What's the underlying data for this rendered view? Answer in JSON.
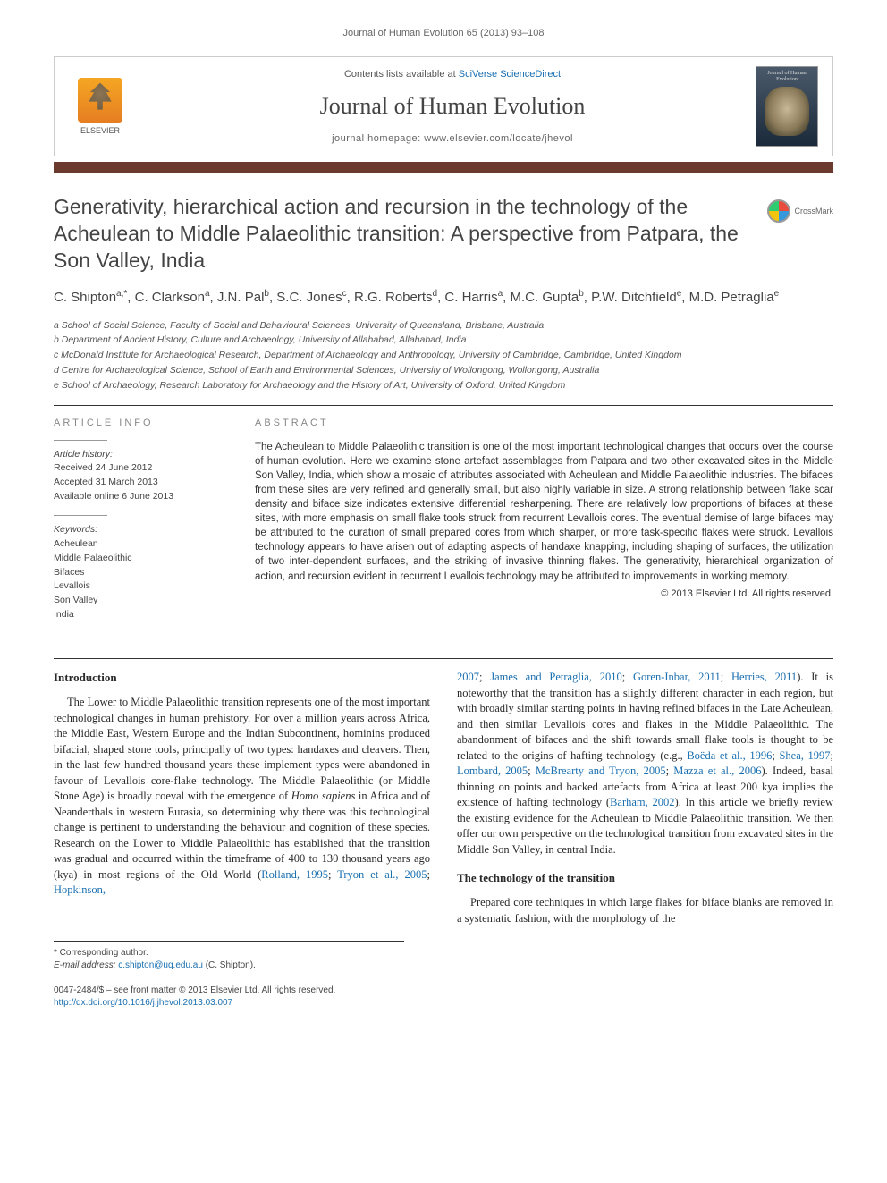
{
  "running_head": "Journal of Human Evolution 65 (2013) 93–108",
  "banner": {
    "publisher": "ELSEVIER",
    "contents_prefix": "Contents lists available at ",
    "contents_link": "SciVerse ScienceDirect",
    "journal_name": "Journal of Human Evolution",
    "homepage_label": "journal homepage: ",
    "homepage_url": "www.elsevier.com/locate/jhevol",
    "cover_title": "Journal of Human Evolution"
  },
  "crossmark_label": "CrossMark",
  "title": "Generativity, hierarchical action and recursion in the technology of the Acheulean to Middle Palaeolithic transition: A perspective from Patpara, the Son Valley, India",
  "authors_html": "C. Shipton<sup>a,*</sup>, C. Clarkson<sup>a</sup>, J.N. Pal<sup>b</sup>, S.C. Jones<sup>c</sup>, R.G. Roberts<sup>d</sup>, C. Harris<sup>a</sup>, M.C. Gupta<sup>b</sup>, P.W. Ditchfield<sup>e</sup>, M.D. Petraglia<sup>e</sup>",
  "affiliations": [
    "a School of Social Science, Faculty of Social and Behavioural Sciences, University of Queensland, Brisbane, Australia",
    "b Department of Ancient History, Culture and Archaeology, University of Allahabad, Allahabad, India",
    "c McDonald Institute for Archaeological Research, Department of Archaeology and Anthropology, University of Cambridge, Cambridge, United Kingdom",
    "d Centre for Archaeological Science, School of Earth and Environmental Sciences, University of Wollongong, Wollongong, Australia",
    "e School of Archaeology, Research Laboratory for Archaeology and the History of Art, University of Oxford, United Kingdom"
  ],
  "article_info": {
    "heading": "ARTICLE INFO",
    "history_head": "Article history:",
    "history": [
      "Received 24 June 2012",
      "Accepted 31 March 2013",
      "Available online 6 June 2013"
    ],
    "keywords_head": "Keywords:",
    "keywords": [
      "Acheulean",
      "Middle Palaeolithic",
      "Bifaces",
      "Levallois",
      "Son Valley",
      "India"
    ]
  },
  "abstract": {
    "heading": "ABSTRACT",
    "text": "The Acheulean to Middle Palaeolithic transition is one of the most important technological changes that occurs over the course of human evolution. Here we examine stone artefact assemblages from Patpara and two other excavated sites in the Middle Son Valley, India, which show a mosaic of attributes associated with Acheulean and Middle Palaeolithic industries. The bifaces from these sites are very refined and generally small, but also highly variable in size. A strong relationship between flake scar density and biface size indicates extensive differential resharpening. There are relatively low proportions of bifaces at these sites, with more emphasis on small flake tools struck from recurrent Levallois cores. The eventual demise of large bifaces may be attributed to the curation of small prepared cores from which sharper, or more task-specific flakes were struck. Levallois technology appears to have arisen out of adapting aspects of handaxe knapping, including shaping of surfaces, the utilization of two inter-dependent surfaces, and the striking of invasive thinning flakes. The generativity, hierarchical organization of action, and recursion evident in recurrent Levallois technology may be attributed to improvements in working memory.",
    "copyright": "© 2013 Elsevier Ltd. All rights reserved."
  },
  "sections": {
    "intro_head": "Introduction",
    "intro_p1_html": "The Lower to Middle Palaeolithic transition represents one of the most important technological changes in human prehistory. For over a million years across Africa, the Middle East, Western Europe and the Indian Subcontinent, hominins produced bifacial, shaped stone tools, principally of two types: handaxes and cleavers. Then, in the last few hundred thousand years these implement types were abandoned in favour of Levallois core-flake technology. The Middle Palaeolithic (or Middle Stone Age) is broadly coeval with the emergence of <em>Homo sapiens</em> in Africa and of Neanderthals in western Eurasia, so determining why there was this technological change is pertinent to understanding the behaviour and cognition of these species. Research on the Lower to Middle Palaeolithic has established that the transition was gradual and occurred within the timeframe of 400 to 130 thousand years ago (kya) in most regions of the Old World (<a href=\"#\">Rolland, 1995</a>; <a href=\"#\">Tryon et al., 2005</a>; <a href=\"#\">Hopkinson,</a>",
    "intro_p2_html": "<a href=\"#\">2007</a>; <a href=\"#\">James and Petraglia, 2010</a>; <a href=\"#\">Goren-Inbar, 2011</a>; <a href=\"#\">Herries, 2011</a>). It is noteworthy that the transition has a slightly different character in each region, but with broadly similar starting points in having refined bifaces in the Late Acheulean, and then similar Levallois cores and flakes in the Middle Palaeolithic. The abandonment of bifaces and the shift towards small flake tools is thought to be related to the origins of hafting technology (e.g., <a href=\"#\">Boëda et al., 1996</a>; <a href=\"#\">Shea, 1997</a>; <a href=\"#\">Lombard, 2005</a>; <a href=\"#\">McBrearty and Tryon, 2005</a>; <a href=\"#\">Mazza et al., 2006</a>). Indeed, basal thinning on points and backed artefacts from Africa at least 200 kya implies the existence of hafting technology (<a href=\"#\">Barham, 2002</a>). In this article we briefly review the existing evidence for the Acheulean to Middle Palaeolithic transition. We then offer our own perspective on the technological transition from excavated sites in the Middle Son Valley, in central India.",
    "tech_head": "The technology of the transition",
    "tech_p1": "Prepared core techniques in which large flakes for biface blanks are removed in a systematic fashion, with the morphology of the"
  },
  "footnotes": {
    "corr": "* Corresponding author.",
    "email_label": "E-mail address: ",
    "email": "c.shipton@uq.edu.au",
    "email_suffix": " (C. Shipton)."
  },
  "bottom": {
    "issn_line": "0047-2484/$ – see front matter © 2013 Elsevier Ltd. All rights reserved.",
    "doi": "http://dx.doi.org/10.1016/j.jhevol.2013.03.007"
  },
  "colors": {
    "bar": "#6b3a2e",
    "link": "#1a6fb0",
    "text": "#333333",
    "muted": "#666666"
  }
}
